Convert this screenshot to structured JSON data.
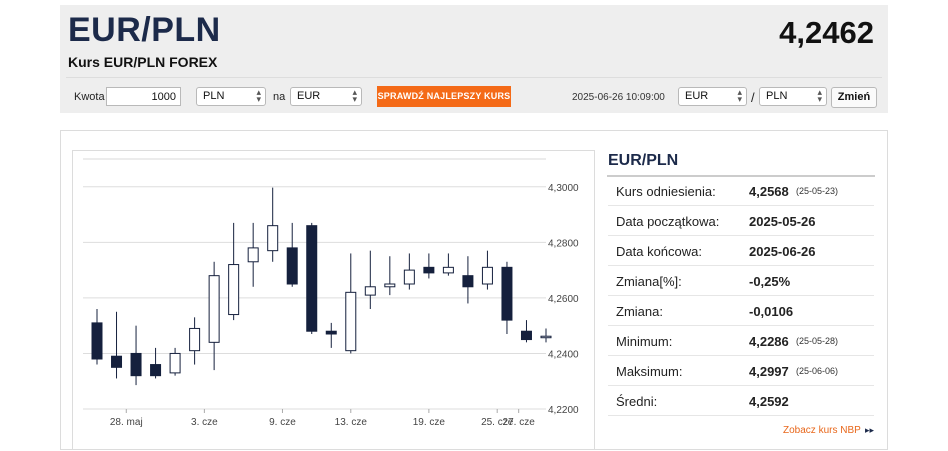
{
  "header": {
    "pair": "EUR/PLN",
    "rate": "4,2462",
    "subtitle": "Kurs EUR/PLN FOREX"
  },
  "converter": {
    "amount_label": "Kwota",
    "amount_value": "1000",
    "from_currency": "PLN",
    "to_label": "na",
    "to_currency": "EUR",
    "best_rate_button": "SPRAWDŹ NAJLEPSZY KURS",
    "timestamp": "2025-06-26 10:09:00",
    "base_currency": "EUR",
    "separator": "/",
    "quote_currency": "PLN",
    "change_button": "Zmień"
  },
  "info": {
    "title": "EUR/PLN",
    "rows": [
      {
        "label": "Kurs odniesienia:",
        "value": "4,2568",
        "date": "(25-05-23)"
      },
      {
        "label": "Data początkowa:",
        "value": "2025-05-26",
        "date": ""
      },
      {
        "label": "Data końcowa:",
        "value": "2025-06-26",
        "date": ""
      },
      {
        "label": "Zmiana[%]:",
        "value": "-0,25%",
        "date": ""
      },
      {
        "label": "Zmiana:",
        "value": "-0,0106",
        "date": ""
      },
      {
        "label": "Minimum:",
        "value": "4,2286",
        "date": "(25-05-28)"
      },
      {
        "label": "Maksimum:",
        "value": "4,2997",
        "date": "(25-06-06)"
      },
      {
        "label": "Średni:",
        "value": "4,2592",
        "date": ""
      }
    ],
    "nbp_link": "Zobacz kurs NBP",
    "nbp_arrows": "▸▸"
  },
  "colors": {
    "accent_orange": "#f46a17",
    "navy": "#1c2a4a",
    "bear_fill": "#15203d",
    "bull_fill": "#ffffff"
  },
  "chart_data": {
    "type": "candlestick",
    "ylim": [
      4.22,
      4.31
    ],
    "yticks": [
      {
        "value": 4.22,
        "label": "4,2200"
      },
      {
        "value": 4.24,
        "label": "4,2400"
      },
      {
        "value": 4.26,
        "label": "4,2600"
      },
      {
        "value": 4.28,
        "label": "4,2800"
      },
      {
        "value": 4.3,
        "label": "4,3000"
      }
    ],
    "xticks": [
      {
        "index": 1.5,
        "label": "28. maj"
      },
      {
        "index": 5.5,
        "label": "3. cze"
      },
      {
        "index": 9.5,
        "label": "9. cze"
      },
      {
        "index": 13,
        "label": "13. cze"
      },
      {
        "index": 17,
        "label": "19. cze"
      },
      {
        "index": 20.5,
        "label": "25. cze"
      },
      {
        "index": 21.6,
        "label": "27. cze"
      }
    ],
    "candles": [
      {
        "date": "2025-05-26",
        "open": 4.251,
        "high": 4.256,
        "low": 4.236,
        "close": 4.238
      },
      {
        "date": "2025-05-27",
        "open": 4.239,
        "high": 4.255,
        "low": 4.231,
        "close": 4.235
      },
      {
        "date": "2025-05-28",
        "open": 4.24,
        "high": 4.25,
        "low": 4.2286,
        "close": 4.232
      },
      {
        "date": "2025-05-29",
        "open": 4.236,
        "high": 4.242,
        "low": 4.231,
        "close": 4.232
      },
      {
        "date": "2025-05-30",
        "open": 4.233,
        "high": 4.242,
        "low": 4.232,
        "close": 4.24
      },
      {
        "date": "2025-06-02",
        "open": 4.241,
        "high": 4.253,
        "low": 4.236,
        "close": 4.249
      },
      {
        "date": "2025-06-03",
        "open": 4.244,
        "high": 4.273,
        "low": 4.234,
        "close": 4.268
      },
      {
        "date": "2025-06-04",
        "open": 4.254,
        "high": 4.287,
        "low": 4.252,
        "close": 4.272
      },
      {
        "date": "2025-06-05",
        "open": 4.273,
        "high": 4.287,
        "low": 4.264,
        "close": 4.278
      },
      {
        "date": "2025-06-06",
        "open": 4.277,
        "high": 4.2997,
        "low": 4.273,
        "close": 4.286
      },
      {
        "date": "2025-06-09",
        "open": 4.278,
        "high": 4.287,
        "low": 4.264,
        "close": 4.265
      },
      {
        "date": "2025-06-10",
        "open": 4.286,
        "high": 4.287,
        "low": 4.247,
        "close": 4.248
      },
      {
        "date": "2025-06-11",
        "open": 4.248,
        "high": 4.251,
        "low": 4.242,
        "close": 4.247
      },
      {
        "date": "2025-06-12",
        "open": 4.241,
        "high": 4.276,
        "low": 4.24,
        "close": 4.262
      },
      {
        "date": "2025-06-13",
        "open": 4.261,
        "high": 4.277,
        "low": 4.256,
        "close": 4.264
      },
      {
        "date": "2025-06-16",
        "open": 4.264,
        "high": 4.275,
        "low": 4.261,
        "close": 4.265
      },
      {
        "date": "2025-06-17",
        "open": 4.265,
        "high": 4.276,
        "low": 4.263,
        "close": 4.27
      },
      {
        "date": "2025-06-18",
        "open": 4.271,
        "high": 4.276,
        "low": 4.267,
        "close": 4.269
      },
      {
        "date": "2025-06-19",
        "open": 4.269,
        "high": 4.276,
        "low": 4.268,
        "close": 4.271
      },
      {
        "date": "2025-06-20",
        "open": 4.268,
        "high": 4.275,
        "low": 4.258,
        "close": 4.264
      },
      {
        "date": "2025-06-23",
        "open": 4.265,
        "high": 4.277,
        "low": 4.263,
        "close": 4.271
      },
      {
        "date": "2025-06-24",
        "open": 4.271,
        "high": 4.273,
        "low": 4.247,
        "close": 4.252
      },
      {
        "date": "2025-06-25",
        "open": 4.248,
        "high": 4.252,
        "low": 4.244,
        "close": 4.245
      },
      {
        "date": "2025-06-26",
        "open": 4.2462,
        "high": 4.249,
        "low": 4.244,
        "close": 4.2462
      }
    ]
  }
}
